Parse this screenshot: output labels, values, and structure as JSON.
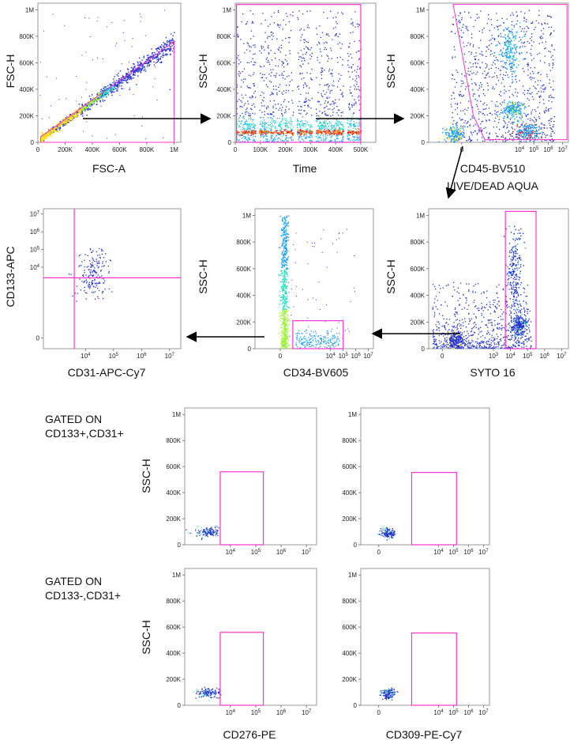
{
  "figure": {
    "notes": [
      {
        "id": "note-cd133pos",
        "lines": [
          "GATED ON",
          "CD133+,CD31+"
        ]
      },
      {
        "id": "note-cd133neg",
        "lines": [
          "GATED ON",
          "CD133-,CD31+"
        ]
      }
    ]
  },
  "colors": {
    "gate": "#ff33cc",
    "arrow": "#000000",
    "density": [
      "#1f2fd0",
      "#1aa3ff",
      "#27e0c0",
      "#9ff23a",
      "#ffe21a",
      "#ff7a12",
      "#e01010"
    ]
  },
  "chart_data": [
    {
      "id": "p1",
      "type": "scatter",
      "title": "",
      "xlabel": "FSC-A",
      "ylabel": "FSC-H",
      "xscale": "linear",
      "xlim": [
        0,
        1050000
      ],
      "xticks": [
        [
          0,
          "0"
        ],
        [
          200000,
          "200K"
        ],
        [
          400000,
          "400K"
        ],
        [
          600000,
          "600K"
        ],
        [
          800000,
          "800K"
        ],
        [
          1000000,
          "1M"
        ]
      ],
      "yscale": "linear",
      "ylim": [
        0,
        1050000
      ],
      "yticks": [
        [
          0,
          "0"
        ],
        [
          200000,
          "200K"
        ],
        [
          400000,
          "400K"
        ],
        [
          600000,
          "600K"
        ],
        [
          800000,
          "800K"
        ],
        [
          1000000,
          "1M"
        ]
      ],
      "gates": [
        {
          "type": "polygon",
          "points": [
            [
              20000,
              0
            ],
            [
              1000000,
              0
            ],
            [
              1000000,
              760000
            ],
            [
              20000,
              40000
            ]
          ]
        }
      ],
      "population": {
        "shape": "diagonal",
        "from": [
          20000,
          30000
        ],
        "to": [
          1000000,
          760000
        ],
        "dense_x": 250000
      }
    },
    {
      "id": "p2",
      "type": "scatter",
      "title": "",
      "xlabel": "Time",
      "ylabel": "SSC-H",
      "xscale": "linear",
      "xlim": [
        0,
        560000
      ],
      "xticks": [
        [
          0,
          "0"
        ],
        [
          100000,
          "100K"
        ],
        [
          200000,
          "200K"
        ],
        [
          300000,
          "300K"
        ],
        [
          400000,
          "400K"
        ],
        [
          500000,
          "500K"
        ]
      ],
      "yscale": "linear",
      "ylim": [
        0,
        1050000
      ],
      "yticks": [
        [
          0,
          "0"
        ],
        [
          200000,
          "200K"
        ],
        [
          400000,
          "400K"
        ],
        [
          600000,
          "600K"
        ],
        [
          800000,
          "800K"
        ],
        [
          1000000,
          "1M"
        ]
      ],
      "gates": [
        {
          "type": "rect",
          "x": [
            5000,
            500000
          ],
          "y": [
            0,
            1040000
          ]
        }
      ],
      "population": {
        "shape": "time-band",
        "gaps": [
          [
            80000,
            95000
          ],
          [
            230000,
            245000
          ],
          [
            305000,
            320000
          ],
          [
            430000,
            445000
          ]
        ],
        "dense_y": 80000
      }
    },
    {
      "id": "p3",
      "type": "scatter",
      "title": "",
      "xlabel": "CD45-BV510",
      "xlabel2": "LIVE/DEAD AQUA",
      "ylabel": "SSC-H",
      "xscale": "log",
      "xlim": [
        -2.3,
        7.4
      ],
      "xticks": [
        [
          0,
          "0"
        ],
        [
          4,
          "10<tspan baseline-shift=\"super\" font-size=\"6\">4</tspan>"
        ],
        [
          5,
          "10<tspan baseline-shift=\"super\" font-size=\"6\">5</tspan>"
        ],
        [
          6,
          "10<tspan baseline-shift=\"super\" font-size=\"6\">6</tspan>"
        ],
        [
          7,
          "10<tspan baseline-shift=\"super\" font-size=\"6\">7</tspan>"
        ]
      ],
      "yscale": "linear",
      "ylim": [
        0,
        1050000
      ],
      "yticks": [
        [
          0,
          "0"
        ],
        [
          200000,
          "200K"
        ],
        [
          400000,
          "400K"
        ],
        [
          600000,
          "600K"
        ],
        [
          800000,
          "800K"
        ],
        [
          1000000,
          "1M"
        ]
      ],
      "gates": [
        {
          "type": "polygon",
          "points": [
            [
              -0.6,
              1040000
            ],
            [
              7.3,
              1040000
            ],
            [
              7.3,
              20000
            ],
            [
              1.6,
              20000
            ],
            [
              0.8,
              200000
            ]
          ]
        }
      ],
      "population": {
        "shape": "clusters",
        "clusters": [
          [
            4.5,
            80000
          ],
          [
            3.5,
            250000
          ],
          [
            3.3,
            700000
          ],
          [
            -0.5,
            60000
          ]
        ]
      }
    },
    {
      "id": "p4",
      "type": "scatter",
      "title": "",
      "xlabel": "CD31-APC-Cy7",
      "ylabel": "CD133-APC",
      "xscale": "log",
      "xlim": [
        2.5,
        7.4
      ],
      "xticks": [
        [
          4,
          "10<tspan baseline-shift=\"super\" font-size=\"6\">4</tspan>"
        ],
        [
          5,
          "10<tspan baseline-shift=\"super\" font-size=\"6\">5</tspan>"
        ],
        [
          6,
          "10<tspan baseline-shift=\"super\" font-size=\"6\">6</tspan>"
        ],
        [
          7,
          "10<tspan baseline-shift=\"super\" font-size=\"6\">7</tspan>"
        ]
      ],
      "yscale": "log",
      "ylim": [
        -0.6,
        7.3
      ],
      "yticks": [
        [
          0,
          "0"
        ],
        [
          4,
          "10<tspan baseline-shift=\"super\" font-size=\"6\">4</tspan>"
        ],
        [
          5,
          "10<tspan baseline-shift=\"super\" font-size=\"6\">5</tspan>"
        ],
        [
          6,
          "10<tspan baseline-shift=\"super\" font-size=\"6\">6</tspan>"
        ],
        [
          7,
          "10<tspan baseline-shift=\"super\" font-size=\"6\">7</tspan>"
        ]
      ],
      "gates": [
        {
          "type": "vline",
          "x": 3.6
        },
        {
          "type": "hline",
          "y": 3.4
        }
      ],
      "population": {
        "shape": "sparse",
        "clusters": [
          [
            4.2,
            3.2
          ],
          [
            4.3,
            4.2
          ]
        ]
      }
    },
    {
      "id": "p5",
      "type": "scatter",
      "title": "",
      "xlabel": "CD34-BV605",
      "ylabel": "SSC-H",
      "xscale": "log",
      "xlim": [
        -2.0,
        7.4
      ],
      "xticks": [
        [
          0,
          "0"
        ],
        [
          4,
          "10<tspan baseline-shift=\"super\" font-size=\"6\">4</tspan>"
        ],
        [
          5,
          "10<tspan baseline-shift=\"super\" font-size=\"6\">5</tspan>"
        ],
        [
          6,
          "10<tspan baseline-shift=\"super\" font-size=\"6\">6</tspan>"
        ],
        [
          7,
          "10<tspan baseline-shift=\"super\" font-size=\"6\">7</tspan>"
        ]
      ],
      "yscale": "linear",
      "ylim": [
        0,
        1050000
      ],
      "yticks": [
        [
          0,
          "0"
        ],
        [
          200000,
          "200K"
        ],
        [
          400000,
          "400K"
        ],
        [
          600000,
          "600K"
        ],
        [
          800000,
          "800K"
        ],
        [
          1000000,
          "1M"
        ]
      ],
      "gates": [
        {
          "type": "rect",
          "x": [
            1.0,
            5.0
          ],
          "y": [
            0,
            210000
          ]
        }
      ],
      "population": {
        "shape": "column",
        "x": 0.3
      }
    },
    {
      "id": "p6",
      "type": "scatter",
      "title": "",
      "xlabel": "SYTO 16",
      "ylabel": "SSC-H",
      "xscale": "log",
      "xlim": [
        -0.8,
        7.4
      ],
      "xticks": [
        [
          0,
          "0"
        ],
        [
          3,
          "10<tspan baseline-shift=\"super\" font-size=\"6\">3</tspan>"
        ],
        [
          4,
          "10<tspan baseline-shift=\"super\" font-size=\"6\">4</tspan>"
        ],
        [
          5,
          "10<tspan baseline-shift=\"super\" font-size=\"6\">5</tspan>"
        ],
        [
          6,
          "10<tspan baseline-shift=\"super\" font-size=\"6\">6</tspan>"
        ],
        [
          7,
          "10<tspan baseline-shift=\"super\" font-size=\"6\">7</tspan>"
        ]
      ],
      "yscale": "linear",
      "ylim": [
        0,
        1050000
      ],
      "yticks": [
        [
          0,
          "0"
        ],
        [
          200000,
          "200K"
        ],
        [
          400000,
          "400K"
        ],
        [
          600000,
          "600K"
        ],
        [
          800000,
          "800K"
        ],
        [
          1000000,
          "1M"
        ]
      ],
      "gates": [
        {
          "type": "rect",
          "x": [
            3.7,
            5.5
          ],
          "y": [
            0,
            1030000
          ]
        }
      ],
      "population": {
        "shape": "syto",
        "clusters": [
          [
            4.2,
            600000
          ],
          [
            4.5,
            180000
          ],
          [
            0.8,
            60000
          ]
        ]
      }
    },
    {
      "id": "p7",
      "type": "scatter",
      "title": "",
      "xlabel": "",
      "ylabel": "SSC-H",
      "xscale": "log",
      "xlim": [
        2.2,
        7.4
      ],
      "xticks": [
        [
          4,
          "10<tspan baseline-shift=\"super\" font-size=\"6\">4</tspan>"
        ],
        [
          5,
          "10<tspan baseline-shift=\"super\" font-size=\"6\">5</tspan>"
        ],
        [
          6,
          "10<tspan baseline-shift=\"super\" font-size=\"6\">6</tspan>"
        ],
        [
          7,
          "10<tspan baseline-shift=\"super\" font-size=\"6\">7</tspan>"
        ]
      ],
      "yscale": "linear",
      "ylim": [
        0,
        1050000
      ],
      "yticks": [
        [
          0,
          "0"
        ],
        [
          200000,
          "200K"
        ],
        [
          400000,
          "400K"
        ],
        [
          600000,
          "600K"
        ],
        [
          800000,
          "800K"
        ],
        [
          1000000,
          "1M"
        ]
      ],
      "gates": [
        {
          "type": "rect",
          "x": [
            3.6,
            5.3
          ],
          "y": [
            0,
            560000
          ]
        }
      ],
      "population": {
        "shape": "small",
        "clusters": [
          [
            3.1,
            100000
          ]
        ]
      }
    },
    {
      "id": "p8",
      "type": "scatter",
      "title": "",
      "xlabel": "",
      "ylabel": "",
      "xscale": "log",
      "xlim": [
        -1.2,
        7.4
      ],
      "xticks": [
        [
          0,
          "0"
        ],
        [
          4,
          "10<tspan baseline-shift=\"super\" font-size=\"6\">4</tspan>"
        ],
        [
          5,
          "10<tspan baseline-shift=\"super\" font-size=\"6\">5</tspan>"
        ],
        [
          6,
          "10<tspan baseline-shift=\"super\" font-size=\"6\">6</tspan>"
        ],
        [
          7,
          "10<tspan baseline-shift=\"super\" font-size=\"6\">7</tspan>"
        ]
      ],
      "yscale": "linear",
      "ylim": [
        0,
        1050000
      ],
      "yticks": [
        [
          0,
          "0"
        ],
        [
          200000,
          "200K"
        ],
        [
          400000,
          "400K"
        ],
        [
          600000,
          "600K"
        ],
        [
          800000,
          "800K"
        ],
        [
          1000000,
          "1M"
        ]
      ],
      "gates": [
        {
          "type": "rect",
          "x": [
            2.2,
            5.2
          ],
          "y": [
            0,
            555000
          ]
        }
      ],
      "population": {
        "shape": "small",
        "clusters": [
          [
            0.6,
            90000
          ]
        ]
      }
    },
    {
      "id": "p9",
      "type": "scatter",
      "title": "",
      "xlabel": "CD276-PE",
      "ylabel": "SSC-H",
      "xscale": "log",
      "xlim": [
        2.2,
        7.4
      ],
      "xticks": [
        [
          4,
          "10<tspan baseline-shift=\"super\" font-size=\"6\">4</tspan>"
        ],
        [
          5,
          "10<tspan baseline-shift=\"super\" font-size=\"6\">5</tspan>"
        ],
        [
          6,
          "10<tspan baseline-shift=\"super\" font-size=\"6\">6</tspan>"
        ],
        [
          7,
          "10<tspan baseline-shift=\"super\" font-size=\"6\">7</tspan>"
        ]
      ],
      "yscale": "linear",
      "ylim": [
        0,
        1050000
      ],
      "yticks": [
        [
          0,
          "0"
        ],
        [
          200000,
          "200K"
        ],
        [
          400000,
          "400K"
        ],
        [
          600000,
          "600K"
        ],
        [
          800000,
          "800K"
        ],
        [
          1000000,
          "1M"
        ]
      ],
      "gates": [
        {
          "type": "rect",
          "x": [
            3.6,
            5.3
          ],
          "y": [
            0,
            560000
          ]
        }
      ],
      "population": {
        "shape": "small",
        "clusters": [
          [
            3.1,
            100000
          ]
        ]
      }
    },
    {
      "id": "p10",
      "type": "scatter",
      "title": "",
      "xlabel": "CD309-PE-Cy7",
      "ylabel": "",
      "xscale": "log",
      "xlim": [
        -1.2,
        7.4
      ],
      "xticks": [
        [
          0,
          "0"
        ],
        [
          4,
          "10<tspan baseline-shift=\"super\" font-size=\"6\">4</tspan>"
        ],
        [
          5,
          "10<tspan baseline-shift=\"super\" font-size=\"6\">5</tspan>"
        ],
        [
          6,
          "10<tspan baseline-shift=\"super\" font-size=\"6\">6</tspan>"
        ],
        [
          7,
          "10<tspan baseline-shift=\"super\" font-size=\"6\">7</tspan>"
        ]
      ],
      "yscale": "linear",
      "ylim": [
        0,
        1050000
      ],
      "yticks": [
        [
          0,
          "0"
        ],
        [
          200000,
          "200K"
        ],
        [
          400000,
          "400K"
        ],
        [
          600000,
          "600K"
        ],
        [
          800000,
          "800K"
        ],
        [
          1000000,
          "1M"
        ]
      ],
      "gates": [
        {
          "type": "rect",
          "x": [
            2.2,
            5.2
          ],
          "y": [
            0,
            555000
          ]
        }
      ],
      "population": {
        "shape": "small",
        "clusters": [
          [
            0.6,
            90000
          ]
        ]
      }
    }
  ]
}
